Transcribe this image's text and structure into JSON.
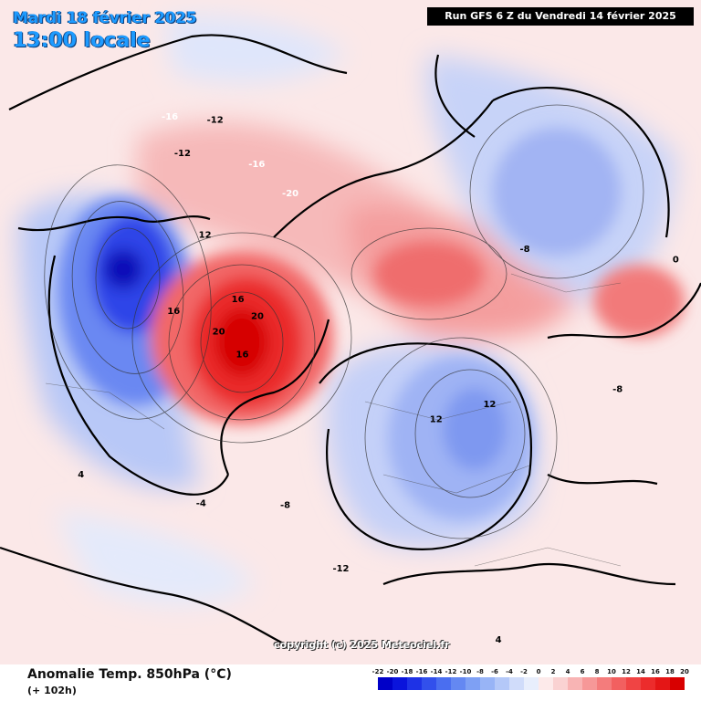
{
  "header": {
    "valid_date": "Mardi 18 février 2025",
    "valid_time": "13:00 locale",
    "run_info": "Run GFS 6 Z du Vendredi 14 février 2025"
  },
  "footer": {
    "parameter": "Anomalie Temp. 850hPa (°C)",
    "lead_time": "(+ 102h)",
    "copyright": "copyright (c) 2025 Meteociel.fr"
  },
  "legend": {
    "ticks": [
      "-22",
      "-20",
      "-18",
      "-16",
      "-14",
      "-12",
      "-10",
      "-8",
      "-6",
      "-4",
      "-2",
      "0",
      "2",
      "4",
      "6",
      "8",
      "10",
      "12",
      "14",
      "16",
      "18",
      "20"
    ],
    "colors": [
      "#0000c8",
      "#0a14dc",
      "#1e32e6",
      "#3250ec",
      "#4a6ef0",
      "#6488f2",
      "#7ea0f4",
      "#98b4f6",
      "#b4c8f8",
      "#d0dcfa",
      "#e8eefc",
      "#fdeaea",
      "#fad2d2",
      "#f8b4b4",
      "#f69898",
      "#f47c7c",
      "#f26060",
      "#f04444",
      "#ec2c2c",
      "#e41616",
      "#d80000"
    ]
  },
  "map": {
    "type": "polar-stereographic",
    "parameter": "anomaly-850hPa-temperature",
    "anomalies": [
      {
        "label": "-20",
        "value": -20,
        "lon": -100,
        "lat": 62
      },
      {
        "label": "-16",
        "value": -16,
        "lon": -95,
        "lat": 55
      },
      {
        "label": "-12",
        "value": -12,
        "lon": -92,
        "lat": 45
      },
      {
        "label": "-12",
        "value": -12,
        "lon": -82,
        "lat": 46
      },
      {
        "label": "-16",
        "value": -16,
        "lon": -85,
        "lat": 40
      },
      {
        "label": "12",
        "value": 12,
        "lon": -70,
        "lat": 58
      },
      {
        "label": "16",
        "value": 16,
        "lon": -55,
        "lat": 68
      },
      {
        "label": "20",
        "value": 20,
        "lon": -50,
        "lat": 72
      },
      {
        "label": "20",
        "value": 20,
        "lon": -40,
        "lat": 66
      },
      {
        "label": "16",
        "value": 16,
        "lon": -30,
        "lat": 70
      },
      {
        "label": "16",
        "value": 16,
        "lon": -45,
        "lat": 58
      },
      {
        "label": "12",
        "value": 12,
        "lon": 100,
        "lat": 72
      },
      {
        "label": "12",
        "value": 12,
        "lon": 120,
        "lat": 66
      },
      {
        "label": "-8",
        "value": -8,
        "lon": 135,
        "lat": 46
      },
      {
        "label": "-8",
        "value": -8,
        "lon": 175,
        "lat": 58
      },
      {
        "label": "-12",
        "value": -12,
        "lon": 50,
        "lat": 52
      },
      {
        "label": "-8",
        "value": -8,
        "lon": 30,
        "lat": 60
      },
      {
        "label": "-4",
        "value": -4,
        "lon": 10,
        "lat": 52
      },
      {
        "label": "4",
        "value": 4,
        "lon": -10,
        "lat": 38
      },
      {
        "label": "0",
        "value": 0,
        "lon": -120,
        "lat": 30
      },
      {
        "label": "0",
        "value": 0,
        "lon": 160,
        "lat": 35
      },
      {
        "label": "4",
        "value": 4,
        "lon": 80,
        "lat": 35
      }
    ]
  }
}
